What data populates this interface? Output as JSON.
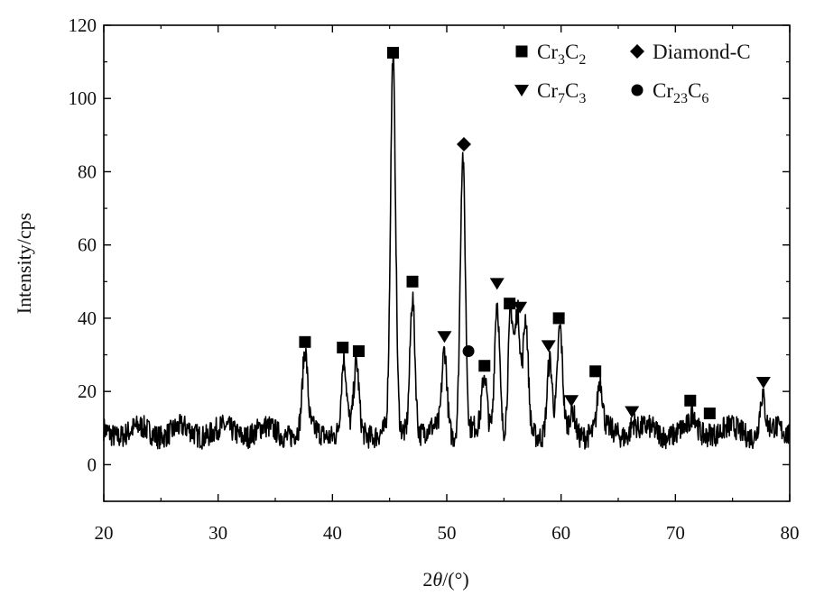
{
  "chart_data": {
    "type": "line",
    "title": "",
    "xlabel": "2θ/(°)",
    "xlabel_parts": {
      "num": "2",
      "theta": "θ",
      "unit": "/(°)"
    },
    "ylabel": "Intensity/cps",
    "xlim": [
      20,
      80
    ],
    "ylim": [
      -10,
      120
    ],
    "x_ticks": [
      20,
      30,
      40,
      50,
      60,
      70,
      80
    ],
    "y_ticks": [
      0,
      20,
      40,
      60,
      80,
      100,
      120
    ],
    "x_tick_labels": [
      "20",
      "30",
      "40",
      "50",
      "60",
      "70",
      "80"
    ],
    "y_tick_labels": [
      "0",
      "20",
      "40",
      "60",
      "80",
      "100",
      "120"
    ],
    "grid": false,
    "legend_position": "top-right",
    "legend": [
      {
        "name": "Cr3C2",
        "base": "Cr",
        "sub1": "3",
        "mid": "C",
        "sub2": "2",
        "marker": "square"
      },
      {
        "name": "Diamond-C",
        "plain": "Diamond-C",
        "marker": "diamond"
      },
      {
        "name": "Cr7C3",
        "base": "Cr",
        "sub1": "7",
        "mid": "C",
        "sub2": "3",
        "marker": "triangle-down"
      },
      {
        "name": "Cr23C6",
        "base": "Cr",
        "sub1": "23",
        "mid": "C",
        "sub2": "6",
        "marker": "circle"
      }
    ],
    "baseline": 9,
    "peaks": [
      {
        "x": 37.6,
        "y": 30
      },
      {
        "x": 41.0,
        "y": 28
      },
      {
        "x": 42.1,
        "y": 27
      },
      {
        "x": 45.3,
        "y": 110
      },
      {
        "x": 47.0,
        "y": 47
      },
      {
        "x": 49.8,
        "y": 31
      },
      {
        "x": 51.4,
        "y": 85
      },
      {
        "x": 53.3,
        "y": 24
      },
      {
        "x": 54.4,
        "y": 46
      },
      {
        "x": 55.6,
        "y": 41
      },
      {
        "x": 56.2,
        "y": 40
      },
      {
        "x": 56.9,
        "y": 39
      },
      {
        "x": 59.0,
        "y": 29
      },
      {
        "x": 59.9,
        "y": 36
      },
      {
        "x": 61.0,
        "y": 15
      },
      {
        "x": 63.4,
        "y": 22
      },
      {
        "x": 66.3,
        "y": 12
      },
      {
        "x": 71.6,
        "y": 13
      },
      {
        "x": 73.1,
        "y": 10
      },
      {
        "x": 77.6,
        "y": 19
      }
    ],
    "phase_markers": [
      {
        "x": 37.6,
        "y": 33.5,
        "phase": "Cr3C2"
      },
      {
        "x": 40.9,
        "y": 32,
        "phase": "Cr3C2"
      },
      {
        "x": 42.3,
        "y": 31,
        "phase": "Cr3C2"
      },
      {
        "x": 45.3,
        "y": 112.5,
        "phase": "Cr3C2"
      },
      {
        "x": 47.0,
        "y": 50,
        "phase": "Cr3C2"
      },
      {
        "x": 49.8,
        "y": 35,
        "phase": "Cr7C3"
      },
      {
        "x": 51.5,
        "y": 87.5,
        "phase": "Diamond-C"
      },
      {
        "x": 51.9,
        "y": 31,
        "phase": "Cr23C6"
      },
      {
        "x": 53.3,
        "y": 27,
        "phase": "Cr3C2"
      },
      {
        "x": 54.4,
        "y": 49.5,
        "phase": "Cr7C3"
      },
      {
        "x": 55.5,
        "y": 44,
        "phase": "Cr3C2"
      },
      {
        "x": 56.4,
        "y": 43,
        "phase": "Cr7C3"
      },
      {
        "x": 58.9,
        "y": 32.5,
        "phase": "Cr7C3"
      },
      {
        "x": 59.8,
        "y": 40,
        "phase": "Cr3C2"
      },
      {
        "x": 60.9,
        "y": 17.5,
        "phase": "Cr7C3"
      },
      {
        "x": 63.0,
        "y": 25.5,
        "phase": "Cr3C2"
      },
      {
        "x": 66.2,
        "y": 14.5,
        "phase": "Cr7C3"
      },
      {
        "x": 71.3,
        "y": 17.5,
        "phase": "Cr3C2"
      },
      {
        "x": 73.0,
        "y": 14,
        "phase": "Cr3C2"
      },
      {
        "x": 77.7,
        "y": 22.5,
        "phase": "Cr7C3"
      }
    ],
    "colors": {
      "line": "#000000",
      "axis": "#000000"
    }
  }
}
